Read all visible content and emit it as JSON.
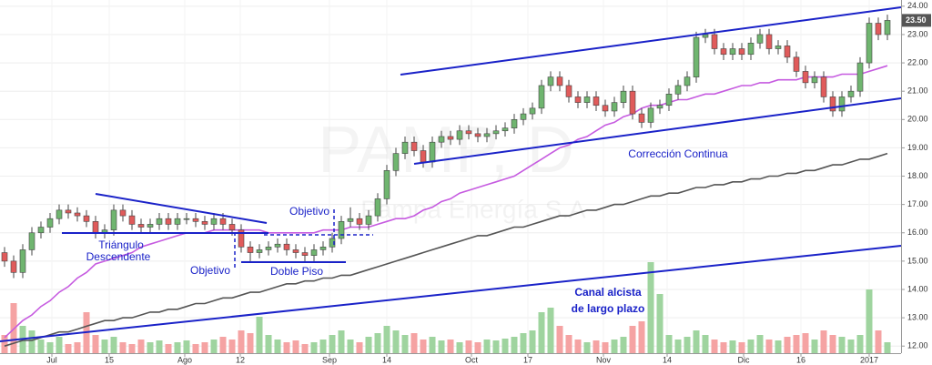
{
  "chart_data": {
    "type": "candlestick",
    "watermark": "PAMP, D",
    "watermark_subtitle": "Pampa Energía S.A",
    "last_label": "23.50",
    "annotations": {
      "triangle_1": "Triángulo",
      "triangle_2": "Descendente",
      "target_left": "Objetivo",
      "double_bottom": "Doble Piso",
      "target_right": "Objetivo",
      "correction": "Corrección Continua",
      "channel_1": "Canal alcista",
      "channel_2": "de largo plazo"
    },
    "xlim": [
      -0.5,
      98.5
    ],
    "xticks": [
      {
        "value": 5.2,
        "label": "Jul"
      },
      {
        "value": 11.5,
        "label": "15"
      },
      {
        "value": 19.8,
        "label": "Ago"
      },
      {
        "value": 25.9,
        "label": "12"
      },
      {
        "value": 35.7,
        "label": "Sep"
      },
      {
        "value": 42,
        "label": "14"
      },
      {
        "value": 51.3,
        "label": "Oct"
      },
      {
        "value": 57.5,
        "label": "17"
      },
      {
        "value": 65.8,
        "label": "Nov"
      },
      {
        "value": 72.8,
        "label": "14"
      },
      {
        "value": 81.2,
        "label": "Dic"
      },
      {
        "value": 87.5,
        "label": "16"
      },
      {
        "value": 95,
        "label": "2017"
      }
    ],
    "ylim": [
      11.75,
      24.22
    ],
    "yticks": [
      {
        "value": 12,
        "label": "12.00"
      },
      {
        "value": 13,
        "label": "13.00"
      },
      {
        "value": 14,
        "label": "14.00"
      },
      {
        "value": 15,
        "label": "15.00"
      },
      {
        "value": 16,
        "label": "16.00"
      },
      {
        "value": 17,
        "label": "17.00"
      },
      {
        "value": 18,
        "label": "18.00"
      },
      {
        "value": 19,
        "label": "19.00"
      },
      {
        "value": 20,
        "label": "20.00"
      },
      {
        "value": 21,
        "label": "21.00"
      },
      {
        "value": 22,
        "label": "22.00"
      },
      {
        "value": 23,
        "label": "23.00"
      },
      {
        "value": 24,
        "label": "24.00"
      }
    ],
    "grid": true,
    "up_color": "#6fb56f",
    "down_color": "#e05b5b",
    "up_volume_color": "#9fd49f",
    "down_volume_color": "#f5a3a3",
    "open": [
      15.3,
      15.0,
      14.6,
      15.4,
      16.0,
      16.2,
      16.5,
      16.8,
      16.7,
      16.6,
      16.4,
      16.0,
      16.1,
      16.8,
      16.6,
      16.3,
      16.2,
      16.3,
      16.5,
      16.3,
      16.5,
      16.5,
      16.4,
      16.3,
      16.5,
      16.3,
      16.1,
      15.5,
      15.3,
      15.4,
      15.5,
      15.6,
      15.4,
      15.3,
      15.2,
      15.4,
      15.5,
      15.8,
      16.4,
      16.5,
      16.3,
      16.6,
      17.2,
      18.2,
      18.8,
      19.2,
      18.9,
      18.5,
      19.2,
      19.4,
      19.3,
      19.6,
      19.5,
      19.4,
      19.5,
      19.6,
      19.7,
      20.0,
      20.2,
      20.4,
      21.2,
      21.5,
      21.2,
      20.8,
      20.6,
      20.8,
      20.5,
      20.3,
      20.6,
      21.0,
      20.2,
      19.9,
      20.4,
      20.5,
      20.9,
      21.2,
      21.5,
      22.9,
      23.0,
      22.5,
      22.3,
      22.5,
      22.3,
      22.7,
      23.0,
      22.5,
      22.6,
      22.2,
      21.7,
      21.3,
      21.5,
      20.8,
      20.3,
      20.8,
      21.0,
      22.0,
      23.4,
      23.0
    ],
    "high": [
      15.5,
      15.2,
      15.6,
      16.2,
      16.4,
      16.7,
      17.0,
      17.0,
      16.9,
      16.8,
      16.6,
      16.3,
      17.0,
      17.0,
      16.8,
      16.5,
      16.5,
      16.7,
      16.7,
      16.7,
      16.7,
      16.7,
      16.6,
      16.7,
      16.7,
      16.5,
      16.3,
      15.7,
      15.6,
      15.7,
      15.8,
      15.8,
      15.6,
      15.5,
      15.6,
      15.7,
      16.0,
      16.6,
      16.9,
      16.7,
      16.8,
      17.4,
      18.4,
      19.0,
      19.4,
      19.4,
      19.1,
      19.4,
      19.6,
      19.6,
      19.8,
      19.8,
      19.7,
      19.7,
      19.8,
      19.9,
      20.2,
      20.4,
      20.6,
      21.4,
      21.7,
      21.7,
      21.4,
      21.0,
      21.0,
      21.0,
      20.7,
      20.8,
      21.2,
      21.2,
      20.4,
      20.6,
      20.7,
      21.1,
      21.4,
      21.7,
      23.1,
      23.2,
      23.2,
      22.7,
      22.7,
      22.7,
      22.9,
      23.2,
      23.2,
      22.8,
      22.8,
      22.4,
      21.9,
      21.7,
      21.7,
      21.0,
      21.0,
      21.2,
      22.2,
      23.6,
      23.6,
      23.7
    ],
    "low": [
      14.8,
      14.4,
      14.4,
      15.2,
      15.8,
      16.0,
      16.3,
      16.5,
      16.4,
      16.2,
      15.8,
      15.8,
      15.9,
      16.4,
      16.1,
      16.0,
      16.0,
      16.1,
      16.1,
      16.1,
      16.3,
      16.2,
      16.1,
      16.1,
      16.1,
      15.9,
      15.3,
      15.0,
      15.1,
      15.2,
      15.3,
      15.2,
      15.1,
      15.0,
      15.0,
      15.2,
      15.3,
      15.6,
      16.2,
      16.1,
      16.1,
      16.4,
      17.0,
      18.0,
      18.6,
      18.7,
      18.3,
      18.3,
      19.0,
      19.1,
      19.1,
      19.3,
      19.2,
      19.2,
      19.3,
      19.4,
      19.5,
      19.8,
      20.0,
      20.2,
      21.0,
      21.0,
      20.6,
      20.4,
      20.4,
      20.3,
      20.1,
      20.1,
      20.4,
      20.0,
      19.7,
      19.7,
      20.2,
      20.3,
      20.7,
      21.0,
      21.3,
      22.7,
      22.3,
      22.1,
      22.1,
      22.1,
      22.1,
      22.5,
      22.3,
      22.3,
      22.0,
      21.5,
      21.1,
      21.1,
      20.6,
      20.1,
      20.1,
      20.6,
      20.8,
      21.8,
      22.8,
      22.8
    ],
    "close": [
      15.0,
      14.6,
      15.4,
      16.0,
      16.2,
      16.5,
      16.8,
      16.7,
      16.6,
      16.4,
      16.0,
      16.1,
      16.8,
      16.6,
      16.3,
      16.2,
      16.3,
      16.5,
      16.3,
      16.5,
      16.5,
      16.4,
      16.3,
      16.5,
      16.3,
      16.1,
      15.5,
      15.3,
      15.4,
      15.5,
      15.6,
      15.4,
      15.3,
      15.2,
      15.4,
      15.5,
      15.8,
      16.4,
      16.5,
      16.3,
      16.6,
      17.2,
      18.2,
      18.8,
      19.2,
      18.9,
      18.5,
      19.2,
      19.4,
      19.3,
      19.6,
      19.5,
      19.4,
      19.5,
      19.6,
      19.7,
      20.0,
      20.2,
      20.4,
      21.2,
      21.5,
      21.2,
      20.8,
      20.6,
      20.8,
      20.5,
      20.3,
      20.6,
      21.0,
      20.2,
      19.9,
      20.4,
      20.5,
      20.9,
      21.2,
      21.5,
      22.9,
      23.0,
      22.5,
      22.3,
      22.5,
      22.3,
      22.7,
      23.0,
      22.5,
      22.6,
      22.2,
      21.7,
      21.3,
      21.5,
      20.8,
      20.3,
      20.8,
      21.0,
      22.0,
      23.4,
      23.0,
      23.5
    ],
    "volume": [
      20,
      55,
      30,
      25,
      15,
      12,
      18,
      10,
      12,
      45,
      20,
      15,
      18,
      12,
      10,
      15,
      12,
      14,
      10,
      12,
      14,
      10,
      12,
      15,
      18,
      15,
      25,
      22,
      40,
      20,
      15,
      12,
      14,
      10,
      12,
      15,
      20,
      25,
      15,
      12,
      18,
      22,
      30,
      25,
      20,
      22,
      15,
      18,
      14,
      15,
      12,
      14,
      12,
      15,
      14,
      16,
      18,
      22,
      25,
      45,
      50,
      30,
      20,
      15,
      12,
      14,
      12,
      15,
      18,
      30,
      35,
      100,
      65,
      20,
      15,
      18,
      25,
      20,
      15,
      12,
      14,
      12,
      15,
      20,
      15,
      14,
      18,
      20,
      22,
      15,
      25,
      20,
      18,
      15,
      20,
      70,
      25,
      12
    ],
    "volume_max": 100,
    "ma_series": [
      {
        "color": "#c65be0",
        "values": [
          12.3,
          12.6,
          12.9,
          13.1,
          13.4,
          13.6,
          13.9,
          14.1,
          14.4,
          14.6,
          14.9,
          15.0,
          15.1,
          15.2,
          15.3,
          15.5,
          15.6,
          15.7,
          15.8,
          15.9,
          16.0,
          16.0,
          16.0,
          16.1,
          16.1,
          16.1,
          16.1,
          16.1,
          16.1,
          16.0,
          16.0,
          16.0,
          16.0,
          16.0,
          16.0,
          16.1,
          16.1,
          16.1,
          16.2,
          16.2,
          16.2,
          16.3,
          16.4,
          16.5,
          16.5,
          16.6,
          16.8,
          16.9,
          17.1,
          17.2,
          17.4,
          17.5,
          17.6,
          17.7,
          17.8,
          17.9,
          18.0,
          18.2,
          18.4,
          18.6,
          18.8,
          19.0,
          19.1,
          19.3,
          19.4,
          19.6,
          19.8,
          19.9,
          20.1,
          20.2,
          20.4,
          20.5,
          20.5,
          20.6,
          20.7,
          20.7,
          20.8,
          20.9,
          20.9,
          21.0,
          21.1,
          21.2,
          21.2,
          21.3,
          21.3,
          21.4,
          21.4,
          21.4,
          21.5,
          21.5,
          21.5,
          21.5,
          21.6,
          21.6,
          21.6,
          21.7,
          21.8,
          21.9
        ]
      },
      {
        "color": "#555555",
        "values": [
          12.0,
          12.1,
          12.2,
          12.2,
          12.3,
          12.4,
          12.5,
          12.5,
          12.6,
          12.7,
          12.8,
          12.9,
          12.9,
          13.0,
          13.0,
          13.1,
          13.2,
          13.2,
          13.3,
          13.3,
          13.4,
          13.5,
          13.5,
          13.6,
          13.7,
          13.7,
          13.8,
          13.9,
          13.9,
          14.0,
          14.1,
          14.2,
          14.2,
          14.3,
          14.3,
          14.4,
          14.4,
          14.5,
          14.5,
          14.6,
          14.7,
          14.8,
          14.9,
          15.0,
          15.1,
          15.2,
          15.3,
          15.4,
          15.5,
          15.6,
          15.7,
          15.8,
          15.9,
          15.9,
          16.0,
          16.1,
          16.2,
          16.2,
          16.3,
          16.4,
          16.5,
          16.6,
          16.6,
          16.7,
          16.8,
          16.8,
          16.9,
          17.0,
          17.0,
          17.1,
          17.2,
          17.3,
          17.3,
          17.4,
          17.4,
          17.5,
          17.6,
          17.6,
          17.7,
          17.7,
          17.8,
          17.8,
          17.9,
          17.9,
          18.0,
          18.0,
          18.1,
          18.1,
          18.2,
          18.2,
          18.3,
          18.4,
          18.4,
          18.5,
          18.6,
          18.6,
          18.7,
          18.8
        ]
      }
    ]
  }
}
